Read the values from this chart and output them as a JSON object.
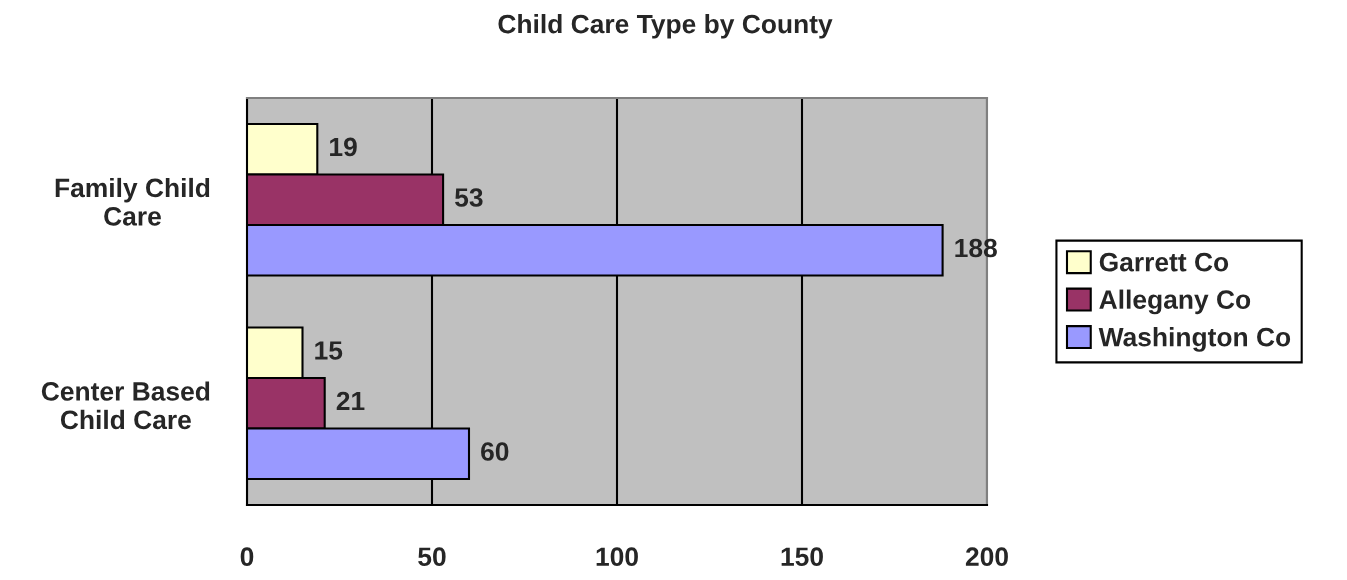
{
  "chart_data": {
    "type": "bar",
    "orientation": "horizontal",
    "title": "Child Care Type by County",
    "categories": [
      "Family Child\nCare",
      "Center Based\nChild Care"
    ],
    "series": [
      {
        "name": "Garrett Co",
        "color": "#ffffcc",
        "values": [
          19,
          15
        ]
      },
      {
        "name": "Allegany Co",
        "color": "#993366",
        "values": [
          53,
          21
        ]
      },
      {
        "name": "Washington Co",
        "color": "#9999ff",
        "values": [
          188,
          60
        ]
      }
    ],
    "xlim": [
      0,
      200
    ],
    "xticks": [
      0,
      50,
      100,
      150,
      200
    ],
    "grid": "x",
    "legend": "right",
    "data_labels": true
  }
}
